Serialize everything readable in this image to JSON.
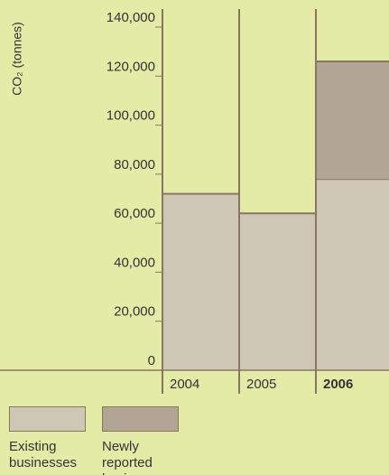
{
  "chart_data": {
    "type": "stacked_bar",
    "y_label": "CO₂ (tonnes)",
    "categories": [
      "2004",
      "2005",
      "2006"
    ],
    "series": [
      {
        "name": "Existing businesses",
        "color": "#cfc7b6",
        "values": [
          72000,
          64000,
          78000
        ]
      },
      {
        "name": "Newly reported businesses",
        "color": "#b3a593",
        "values": [
          0,
          0,
          48000
        ]
      }
    ],
    "ylim": [
      0,
      140000
    ],
    "yticks": [
      0,
      {
        "value": 20000,
        "label": "20,000"
      },
      {
        "value": 40000,
        "label": "40,000"
      },
      {
        "value": 60000,
        "label": "60,000"
      },
      {
        "value": 80000,
        "label": "80,000"
      },
      {
        "value": 100000,
        "label": "100,000"
      },
      {
        "value": 120000,
        "label": "120,000"
      },
      {
        "value": 140000,
        "label": "140,000"
      }
    ]
  }
}
